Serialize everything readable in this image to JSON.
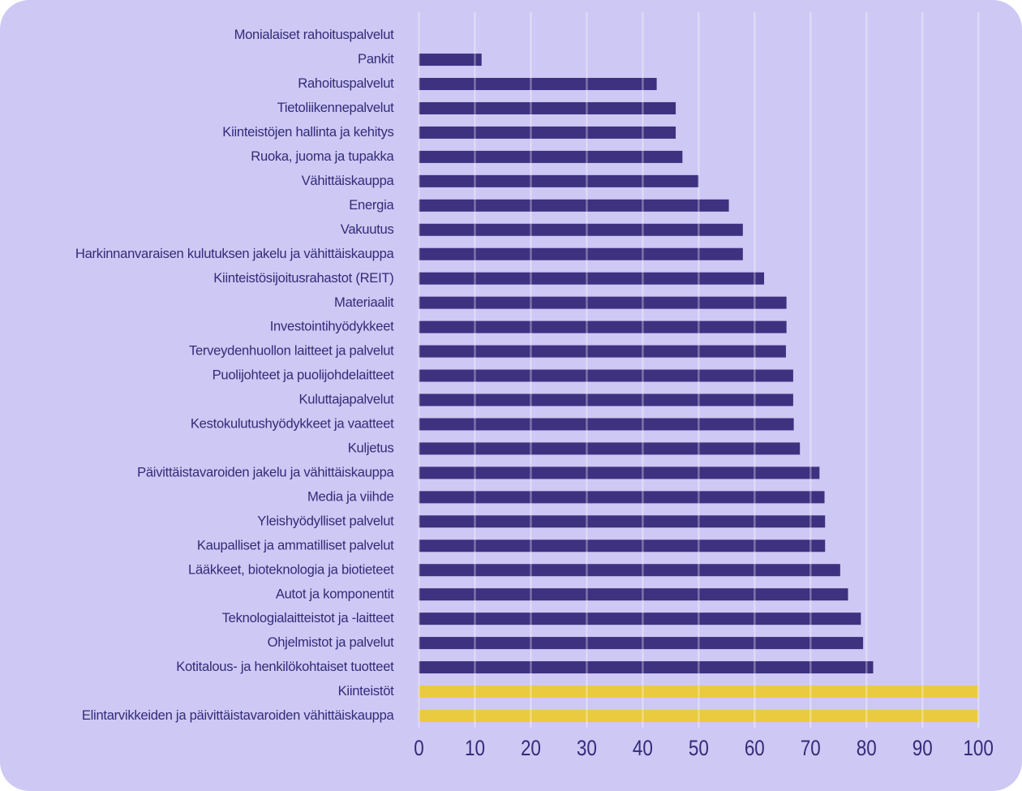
{
  "chart_data": {
    "type": "bar",
    "orientation": "horizontal",
    "title": "",
    "xlabel": "",
    "ylabel": "",
    "xlim": [
      0,
      100
    ],
    "x_ticks": [
      0,
      10,
      20,
      30,
      40,
      50,
      60,
      70,
      80,
      90,
      100
    ],
    "grid": "vertical",
    "legend": "none",
    "categories": [
      "Monialaiset rahoituspalvelut",
      "Pankit",
      "Rahoituspalvelut",
      "Tietoliikennepalvelut",
      "Kiinteistöjen hallinta ja kehitys",
      "Ruoka, juoma ja tupakka",
      "Vähittäiskauppa",
      "Energia",
      "Vakuutus",
      "Harkinnanvaraisen kulutuksen jakelu ja vähittäiskauppa",
      "Kiinteistösijoitusrahastot (REIT)",
      "Materiaalit",
      "Investointihyödykkeet",
      "Terveydenhuollon laitteet ja palvelut",
      "Puolijohteet ja puolijohdelaitteet",
      "Kuluttajapalvelut",
      "Kestokulutushyödykkeet ja vaatteet",
      "Kuljetus",
      "Päivittäistavaroiden jakelu ja vähittäiskauppa",
      "Media ja viihde",
      "Yleishyödylliset palvelut",
      "Kaupalliset ja ammatilliset palvelut",
      "Lääkkeet, bioteknologia ja biotieteet",
      "Autot ja komponentit",
      "Teknologialaitteistot ja -laitteet",
      "Ohjelmistot ja palvelut",
      "Kotitalous- ja henkilökohtaiset tuotteet",
      "Kiinteistöt",
      "Elintarvikkeiden ja päivittäistavaroiden vähittäiskauppa"
    ],
    "values": [
      0,
      11.2,
      42.5,
      45.9,
      45.9,
      47.1,
      50.0,
      55.4,
      57.9,
      57.9,
      61.7,
      65.7,
      65.7,
      65.6,
      66.9,
      66.9,
      67.0,
      68.1,
      71.6,
      72.5,
      72.6,
      72.6,
      75.3,
      76.7,
      79.0,
      79.4,
      81.2,
      100,
      100
    ],
    "highlight_categories": [
      "Kiinteistöt",
      "Elintarvikkeiden ja päivittäistavaroiden vähittäiskauppa"
    ],
    "colors": {
      "bar": "#3e3180",
      "bar_highlight": "#eacb40",
      "background": "#cec8f4",
      "grid": "rgba(255,255,255,0.32)",
      "label_text": "#332b79",
      "tick_text": "#332b79"
    }
  }
}
